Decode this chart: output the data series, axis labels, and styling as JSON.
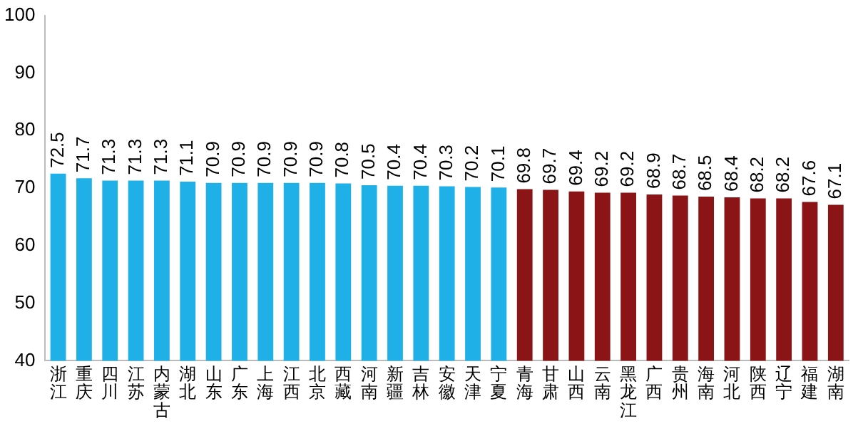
{
  "chart_data": {
    "type": "bar",
    "categories": [
      "浙江",
      "重庆",
      "四川",
      "江苏",
      "内蒙古",
      "湖北",
      "山东",
      "广东",
      "上海",
      "江西",
      "北京",
      "西藏",
      "河南",
      "新疆",
      "吉林",
      "安徽",
      "天津",
      "宁夏",
      "青海",
      "甘肃",
      "山西",
      "云南",
      "黑龙江",
      "广西",
      "贵州",
      "海南",
      "河北",
      "陕西",
      "辽宁",
      "福建",
      "湖南"
    ],
    "values": [
      72.5,
      71.7,
      71.3,
      71.3,
      71.3,
      71.1,
      70.9,
      70.9,
      70.9,
      70.9,
      70.9,
      70.8,
      70.5,
      70.4,
      70.4,
      70.3,
      70.2,
      70.1,
      69.8,
      69.7,
      69.4,
      69.2,
      69.2,
      68.9,
      68.7,
      68.5,
      68.4,
      68.2,
      68.2,
      67.6,
      67.1
    ],
    "colors": [
      "#1fb0e8",
      "#1fb0e8",
      "#1fb0e8",
      "#1fb0e8",
      "#1fb0e8",
      "#1fb0e8",
      "#1fb0e8",
      "#1fb0e8",
      "#1fb0e8",
      "#1fb0e8",
      "#1fb0e8",
      "#1fb0e8",
      "#1fb0e8",
      "#1fb0e8",
      "#1fb0e8",
      "#1fb0e8",
      "#1fb0e8",
      "#1fb0e8",
      "#8b1416",
      "#8b1416",
      "#8b1416",
      "#8b1416",
      "#8b1416",
      "#8b1416",
      "#8b1416",
      "#8b1416",
      "#8b1416",
      "#8b1416",
      "#8b1416",
      "#8b1416",
      "#8b1416"
    ],
    "ylim": [
      40,
      100
    ],
    "yticks": [
      40,
      50,
      60,
      70,
      80,
      90,
      100
    ],
    "grid": false,
    "legend": false,
    "data_labels": true
  }
}
